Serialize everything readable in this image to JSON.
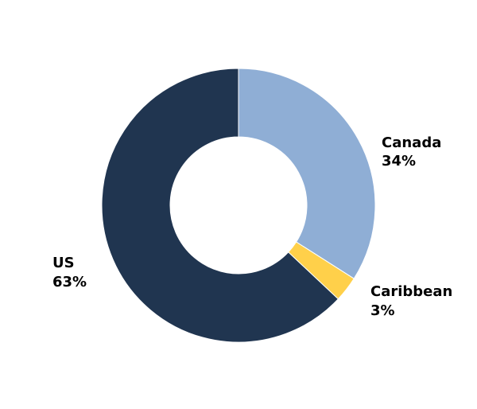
{
  "chart_data": {
    "type": "pie",
    "donut": true,
    "title": "",
    "legend": "none",
    "start": "top",
    "direction": "clockwise",
    "slices": [
      {
        "name": "Canada",
        "percent_label": "34%",
        "value": 34,
        "color": "#8FAED5"
      },
      {
        "name": "Caribbean",
        "percent_label": "3%",
        "value": 3,
        "color": "#FFD04A"
      },
      {
        "name": "US",
        "percent_label": "63%",
        "value": 63,
        "color": "#203550"
      }
    ]
  }
}
